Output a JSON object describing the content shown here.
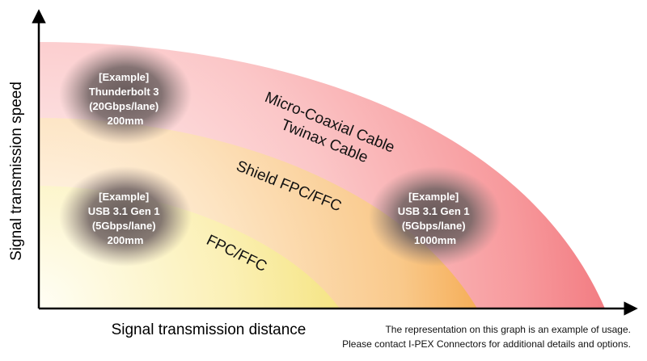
{
  "axes": {
    "y_label": "Signal transmission speed",
    "x_label": "Signal transmission distance"
  },
  "zones": [
    {
      "id": "micro-coaxial",
      "lines": [
        "Micro-Coaxial Cable",
        "Twinax Cable"
      ],
      "color": "#f06e74"
    },
    {
      "id": "shield-fpc",
      "lines": [
        "Shield FPC/FFC"
      ],
      "color": "#f6b15a"
    },
    {
      "id": "fpc",
      "lines": [
        "FPC/FFC"
      ],
      "color": "#f5e784"
    }
  ],
  "examples": [
    {
      "id": "thunderbolt",
      "lines": [
        "[Example]",
        "Thunderbolt 3",
        "(20Gbps/lane)",
        "200mm"
      ]
    },
    {
      "id": "usb-200",
      "lines": [
        "[Example]",
        "USB 3.1 Gen 1",
        "(5Gbps/lane)",
        "200mm"
      ]
    },
    {
      "id": "usb-1000",
      "lines": [
        "[Example]",
        "USB 3.1 Gen 1",
        "(5Gbps/lane)",
        "1000mm"
      ]
    }
  ],
  "note": {
    "line1": "The representation on this graph is an example of usage.",
    "line2": "Please contact I-PEX Connectors for additional details and options."
  }
}
